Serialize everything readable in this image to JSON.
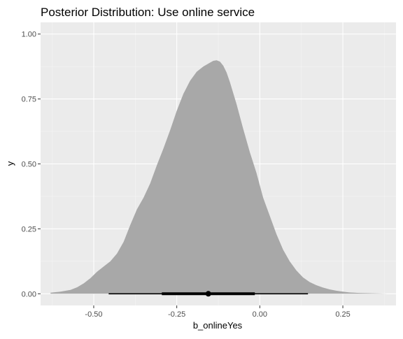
{
  "colors": {
    "panel_background": "#ebebeb",
    "grid_major": "#ffffff",
    "grid_minor": "#f5f5f5",
    "density_fill": "#a8a8a8",
    "interval": "#000000",
    "tick_text": "#4d4d4d"
  },
  "chart_data": {
    "type": "area",
    "title": "Posterior Distribution: Use online service",
    "xlabel": "b_onlineYes",
    "ylabel": "y",
    "xlim": [
      -0.66,
      0.41
    ],
    "ylim": [
      -0.045,
      1.045
    ],
    "x_ticks": [
      {
        "value": -0.5,
        "label": "-0.50"
      },
      {
        "value": -0.25,
        "label": "-0.25"
      },
      {
        "value": 0.0,
        "label": "0.00"
      },
      {
        "value": 0.25,
        "label": "0.25"
      }
    ],
    "y_ticks": [
      {
        "value": 0.0,
        "label": "0.00"
      },
      {
        "value": 0.25,
        "label": "0.25"
      },
      {
        "value": 0.5,
        "label": "0.50"
      },
      {
        "value": 0.75,
        "label": "0.75"
      },
      {
        "value": 1.0,
        "label": "1.00"
      }
    ],
    "grid": true,
    "density": {
      "x": [
        -0.63,
        -0.6,
        -0.57,
        -0.55,
        -0.53,
        -0.51,
        -0.49,
        -0.47,
        -0.45,
        -0.43,
        -0.41,
        -0.39,
        -0.37,
        -0.35,
        -0.33,
        -0.31,
        -0.29,
        -0.27,
        -0.25,
        -0.23,
        -0.21,
        -0.19,
        -0.17,
        -0.15,
        -0.14,
        -0.13,
        -0.12,
        -0.11,
        -0.1,
        -0.09,
        -0.07,
        -0.05,
        -0.03,
        -0.01,
        0.01,
        0.03,
        0.05,
        0.07,
        0.09,
        0.11,
        0.13,
        0.15,
        0.17,
        0.19,
        0.21,
        0.23,
        0.25,
        0.27,
        0.3,
        0.33,
        0.36,
        0.385
      ],
      "y": [
        0.004,
        0.008,
        0.015,
        0.025,
        0.04,
        0.06,
        0.085,
        0.105,
        0.125,
        0.155,
        0.2,
        0.265,
        0.325,
        0.37,
        0.425,
        0.495,
        0.56,
        0.63,
        0.705,
        0.77,
        0.82,
        0.855,
        0.875,
        0.89,
        0.897,
        0.899,
        0.894,
        0.878,
        0.852,
        0.815,
        0.73,
        0.635,
        0.545,
        0.465,
        0.37,
        0.3,
        0.23,
        0.17,
        0.125,
        0.09,
        0.063,
        0.045,
        0.033,
        0.024,
        0.017,
        0.012,
        0.008,
        0.005,
        0.003,
        0.002,
        0.001,
        0.0
      ]
    },
    "point_interval": {
      "median": -0.155,
      "inner_interval": [
        -0.295,
        -0.015
      ],
      "outer_interval": [
        -0.455,
        0.145
      ],
      "y": 0.0
    }
  }
}
